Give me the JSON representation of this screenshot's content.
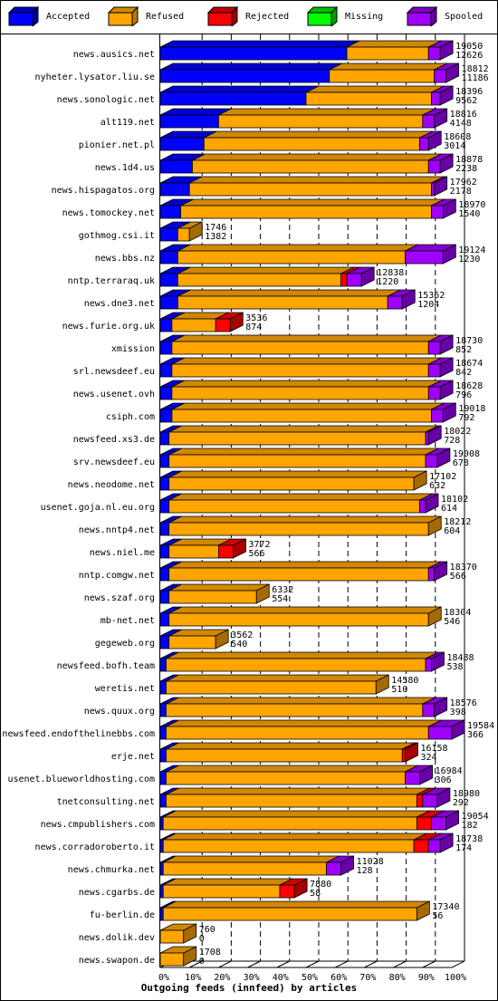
{
  "legend": {
    "accepted": {
      "label": "Accepted",
      "color": "#0000ff"
    },
    "refused": {
      "label": "Refused",
      "color": "#ffa500"
    },
    "rejected": {
      "label": "Rejected",
      "color": "#ff0000"
    },
    "missing": {
      "label": "Missing",
      "color": "#00ff00"
    },
    "spooled": {
      "label": "Spooled",
      "color": "#a000ff"
    }
  },
  "chart_data": {
    "type": "bar",
    "orientation": "horizontal",
    "stacked": true,
    "xlabel": "Outgoing feeds (innfeed) by articles",
    "x_ticks": [
      "0%",
      "10%",
      "20%",
      "30%",
      "40%",
      "50%",
      "60%",
      "70%",
      "80%",
      "90%",
      "100%"
    ],
    "xlim": [
      0,
      100
    ],
    "grid": true,
    "series_order": [
      "Accepted",
      "Refused",
      "Rejected",
      "Missing",
      "Spooled"
    ],
    "categories": [
      "news.ausics.net",
      "nyheter.lysator.liu.se",
      "news.sonologic.net",
      "alt119.net",
      "pionier.net.pl",
      "news.1d4.us",
      "news.hispagatos.org",
      "news.tomockey.net",
      "gothmog.csi.it",
      "news.bbs.nz",
      "nntp.terraraq.uk",
      "news.dne3.net",
      "news.furie.org.uk",
      "xmission",
      "srl.newsdeef.eu",
      "news.usenet.ovh",
      "csiph.com",
      "newsfeed.xs3.de",
      "srv.newsdeef.eu",
      "news.neodome.net",
      "usenet.goja.nl.eu.org",
      "news.nntp4.net",
      "news.niel.me",
      "nntp.comgw.net",
      "news.szaf.org",
      "mb-net.net",
      "gegeweb.org",
      "newsfeed.bofh.team",
      "weretis.net",
      "news.quux.org",
      "newsfeed.endofthelinebbs.com",
      "erje.net",
      "usenet.blueworldhosting.com",
      "tnetconsulting.net",
      "news.cmpublishers.com",
      "news.corradoroberto.it",
      "news.chmurka.net",
      "news.cgarbs.de",
      "fu-berlin.de",
      "news.dolik.dev",
      "news.swapon.de"
    ],
    "offered": [
      19050,
      18812,
      18396,
      18816,
      18608,
      18878,
      17962,
      18970,
      1746,
      19124,
      12838,
      15362,
      3536,
      18730,
      18674,
      18628,
      19018,
      18022,
      19008,
      17102,
      18102,
      18212,
      3772,
      18370,
      6332,
      18304,
      3562,
      18488,
      14580,
      18576,
      19584,
      16158,
      16984,
      18980,
      19054,
      18738,
      11028,
      7880,
      17340,
      760,
      1708
    ],
    "accepted_count": [
      12626,
      11186,
      9562,
      4148,
      3014,
      2238,
      2178,
      1540,
      1382,
      1230,
      1220,
      1204,
      874,
      852,
      842,
      796,
      792,
      728,
      678,
      632,
      614,
      604,
      566,
      566,
      554,
      546,
      540,
      538,
      510,
      398,
      366,
      324,
      306,
      292,
      182,
      174,
      128,
      58,
      56,
      0,
      0
    ],
    "series": [
      {
        "name": "Accepted",
        "values": [
          64,
          58,
          50,
          20,
          15,
          11,
          10,
          7,
          6,
          6,
          6,
          6,
          4,
          4,
          4,
          4,
          4,
          3,
          3,
          3,
          3,
          3,
          3,
          3,
          3,
          3,
          3,
          2,
          2,
          2,
          2,
          2,
          2,
          2,
          1,
          1,
          1,
          1,
          1,
          0,
          0
        ]
      },
      {
        "name": "Refused",
        "values": [
          28,
          36,
          43,
          70,
          74,
          81,
          83,
          86,
          4,
          78,
          56,
          72,
          15,
          88,
          88,
          88,
          89,
          88,
          88,
          84,
          86,
          89,
          17,
          89,
          30,
          89,
          16,
          89,
          72,
          88,
          90,
          81,
          82,
          86,
          87,
          86,
          56,
          40,
          87,
          8,
          8
        ]
      },
      {
        "name": "Rejected",
        "values": [
          0,
          0,
          0,
          0,
          0,
          0,
          0,
          0,
          0,
          0,
          2,
          0,
          5,
          0,
          0,
          0,
          0,
          0,
          0,
          0,
          0,
          0,
          5,
          0,
          0,
          0,
          0,
          0,
          0,
          0,
          0,
          1,
          0,
          2,
          5,
          5,
          0,
          5,
          0,
          0,
          0
        ]
      },
      {
        "name": "Missing",
        "values": [
          0,
          0,
          0,
          0,
          0,
          0,
          0,
          0,
          0,
          0,
          0,
          0,
          0,
          0,
          0,
          0,
          0,
          0,
          0,
          0,
          0,
          0,
          0,
          0,
          0,
          0,
          0,
          0,
          0,
          0,
          0,
          0,
          0,
          0,
          0,
          0,
          0,
          0,
          0,
          0,
          0
        ]
      },
      {
        "name": "Spooled",
        "values": [
          4,
          4,
          3,
          4,
          3,
          4,
          1,
          4,
          0,
          13,
          5,
          5,
          0,
          4,
          4,
          4,
          4,
          1,
          4,
          0,
          2,
          0,
          0,
          2,
          0,
          0,
          0,
          2,
          0,
          4,
          8,
          0,
          5,
          5,
          5,
          4,
          5,
          0,
          0,
          0,
          0
        ]
      }
    ]
  }
}
